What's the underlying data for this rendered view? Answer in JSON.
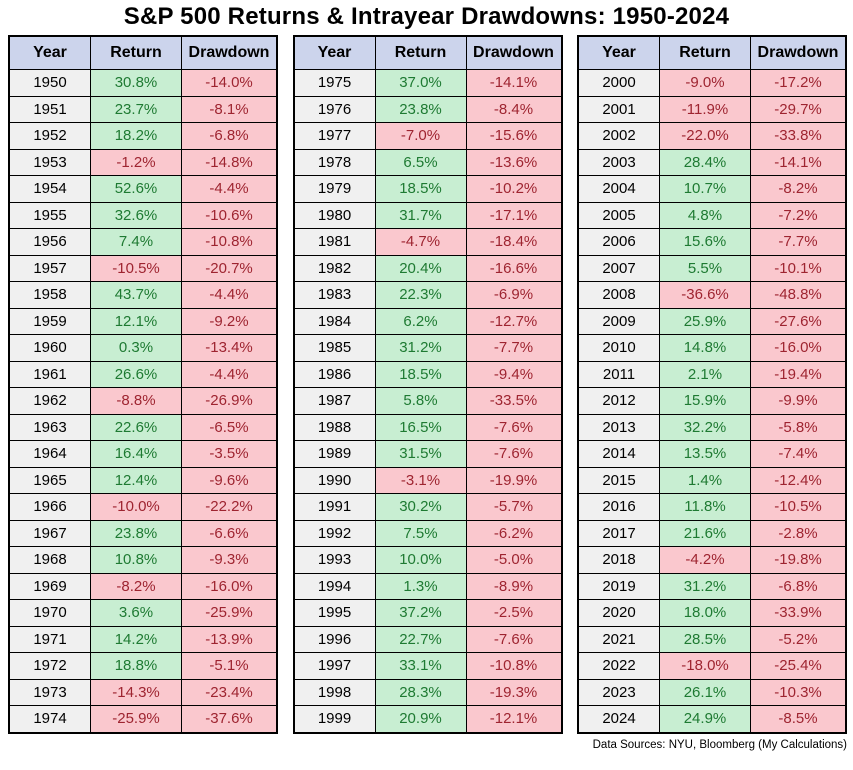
{
  "title": "S&P 500 Returns & Intrayear Drawdowns: 1950-2024",
  "footer": "Data Sources: NYU, Bloomberg (My Calculations)",
  "colors": {
    "header_bg": "#ccd4ec",
    "year_bg": "#f0f0f0",
    "positive_bg": "#c8eed2",
    "positive_text": "#1e7a32",
    "negative_bg": "#fac8ce",
    "negative_text": "#9e2430",
    "border": "#000000"
  },
  "chart_data": {
    "type": "table",
    "title": "S&P 500 Returns & Intrayear Drawdowns: 1950-2024",
    "columns": [
      "Year",
      "Return",
      "Drawdown"
    ],
    "tables": [
      {
        "rows": [
          [
            "1950",
            "30.8%",
            "-14.0%"
          ],
          [
            "1951",
            "23.7%",
            "-8.1%"
          ],
          [
            "1952",
            "18.2%",
            "-6.8%"
          ],
          [
            "1953",
            "-1.2%",
            "-14.8%"
          ],
          [
            "1954",
            "52.6%",
            "-4.4%"
          ],
          [
            "1955",
            "32.6%",
            "-10.6%"
          ],
          [
            "1956",
            "7.4%",
            "-10.8%"
          ],
          [
            "1957",
            "-10.5%",
            "-20.7%"
          ],
          [
            "1958",
            "43.7%",
            "-4.4%"
          ],
          [
            "1959",
            "12.1%",
            "-9.2%"
          ],
          [
            "1960",
            "0.3%",
            "-13.4%"
          ],
          [
            "1961",
            "26.6%",
            "-4.4%"
          ],
          [
            "1962",
            "-8.8%",
            "-26.9%"
          ],
          [
            "1963",
            "22.6%",
            "-6.5%"
          ],
          [
            "1964",
            "16.4%",
            "-3.5%"
          ],
          [
            "1965",
            "12.4%",
            "-9.6%"
          ],
          [
            "1966",
            "-10.0%",
            "-22.2%"
          ],
          [
            "1967",
            "23.8%",
            "-6.6%"
          ],
          [
            "1968",
            "10.8%",
            "-9.3%"
          ],
          [
            "1969",
            "-8.2%",
            "-16.0%"
          ],
          [
            "1970",
            "3.6%",
            "-25.9%"
          ],
          [
            "1971",
            "14.2%",
            "-13.9%"
          ],
          [
            "1972",
            "18.8%",
            "-5.1%"
          ],
          [
            "1973",
            "-14.3%",
            "-23.4%"
          ],
          [
            "1974",
            "-25.9%",
            "-37.6%"
          ]
        ]
      },
      {
        "rows": [
          [
            "1975",
            "37.0%",
            "-14.1%"
          ],
          [
            "1976",
            "23.8%",
            "-8.4%"
          ],
          [
            "1977",
            "-7.0%",
            "-15.6%"
          ],
          [
            "1978",
            "6.5%",
            "-13.6%"
          ],
          [
            "1979",
            "18.5%",
            "-10.2%"
          ],
          [
            "1980",
            "31.7%",
            "-17.1%"
          ],
          [
            "1981",
            "-4.7%",
            "-18.4%"
          ],
          [
            "1982",
            "20.4%",
            "-16.6%"
          ],
          [
            "1983",
            "22.3%",
            "-6.9%"
          ],
          [
            "1984",
            "6.2%",
            "-12.7%"
          ],
          [
            "1985",
            "31.2%",
            "-7.7%"
          ],
          [
            "1986",
            "18.5%",
            "-9.4%"
          ],
          [
            "1987",
            "5.8%",
            "-33.5%"
          ],
          [
            "1988",
            "16.5%",
            "-7.6%"
          ],
          [
            "1989",
            "31.5%",
            "-7.6%"
          ],
          [
            "1990",
            "-3.1%",
            "-19.9%"
          ],
          [
            "1991",
            "30.2%",
            "-5.7%"
          ],
          [
            "1992",
            "7.5%",
            "-6.2%"
          ],
          [
            "1993",
            "10.0%",
            "-5.0%"
          ],
          [
            "1994",
            "1.3%",
            "-8.9%"
          ],
          [
            "1995",
            "37.2%",
            "-2.5%"
          ],
          [
            "1996",
            "22.7%",
            "-7.6%"
          ],
          [
            "1997",
            "33.1%",
            "-10.8%"
          ],
          [
            "1998",
            "28.3%",
            "-19.3%"
          ],
          [
            "1999",
            "20.9%",
            "-12.1%"
          ]
        ]
      },
      {
        "rows": [
          [
            "2000",
            "-9.0%",
            "-17.2%"
          ],
          [
            "2001",
            "-11.9%",
            "-29.7%"
          ],
          [
            "2002",
            "-22.0%",
            "-33.8%"
          ],
          [
            "2003",
            "28.4%",
            "-14.1%"
          ],
          [
            "2004",
            "10.7%",
            "-8.2%"
          ],
          [
            "2005",
            "4.8%",
            "-7.2%"
          ],
          [
            "2006",
            "15.6%",
            "-7.7%"
          ],
          [
            "2007",
            "5.5%",
            "-10.1%"
          ],
          [
            "2008",
            "-36.6%",
            "-48.8%"
          ],
          [
            "2009",
            "25.9%",
            "-27.6%"
          ],
          [
            "2010",
            "14.8%",
            "-16.0%"
          ],
          [
            "2011",
            "2.1%",
            "-19.4%"
          ],
          [
            "2012",
            "15.9%",
            "-9.9%"
          ],
          [
            "2013",
            "32.2%",
            "-5.8%"
          ],
          [
            "2014",
            "13.5%",
            "-7.4%"
          ],
          [
            "2015",
            "1.4%",
            "-12.4%"
          ],
          [
            "2016",
            "11.8%",
            "-10.5%"
          ],
          [
            "2017",
            "21.6%",
            "-2.8%"
          ],
          [
            "2018",
            "-4.2%",
            "-19.8%"
          ],
          [
            "2019",
            "31.2%",
            "-6.8%"
          ],
          [
            "2020",
            "18.0%",
            "-33.9%"
          ],
          [
            "2021",
            "28.5%",
            "-5.2%"
          ],
          [
            "2022",
            "-18.0%",
            "-25.4%"
          ],
          [
            "2023",
            "26.1%",
            "-10.3%"
          ],
          [
            "2024",
            "24.9%",
            "-8.5%"
          ]
        ]
      }
    ]
  }
}
